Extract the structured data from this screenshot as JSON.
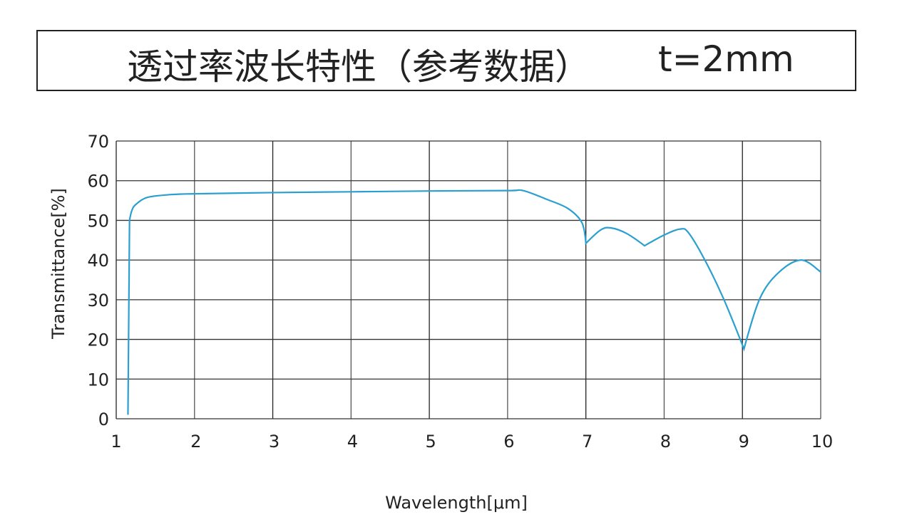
{
  "title": {
    "main": "透过率波长特性（参考数据）",
    "thickness": "t=2mm"
  },
  "chart_data": {
    "type": "line",
    "title": "透过率波长特性（参考数据） t=2mm",
    "xlabel": "Wavelength[μm]",
    "ylabel": "Transmittance[%]",
    "xlim": [
      1,
      10
    ],
    "ylim": [
      0,
      70
    ],
    "xticks": [
      1,
      2,
      3,
      4,
      5,
      6,
      7,
      8,
      9,
      10
    ],
    "yticks": [
      0,
      10,
      20,
      30,
      40,
      50,
      60,
      70
    ],
    "grid": true,
    "line_color": "#2a9fd0",
    "series": [
      {
        "x": [
          1.15,
          1.17,
          1.2,
          1.25,
          1.4,
          1.7,
          2,
          3,
          4,
          5,
          6,
          6.2,
          6.5,
          6.77,
          6.95,
          7.0,
          7.19,
          7.32,
          7.52,
          7.75,
          8.0,
          8.2,
          8.31,
          8.52,
          8.76,
          9.02,
          9.22,
          9.46,
          9.75,
          10
        ],
        "y": [
          1,
          50,
          52.5,
          54,
          55.8,
          56.5,
          56.7,
          57,
          57.2,
          57.4,
          57.5,
          57.5,
          55.3,
          53,
          49.4,
          44.2,
          47.6,
          48.1,
          46.7,
          43.6,
          46.3,
          47.8,
          46.9,
          40,
          30.2,
          17.6,
          30.2,
          36.8,
          40,
          37
        ]
      }
    ]
  }
}
